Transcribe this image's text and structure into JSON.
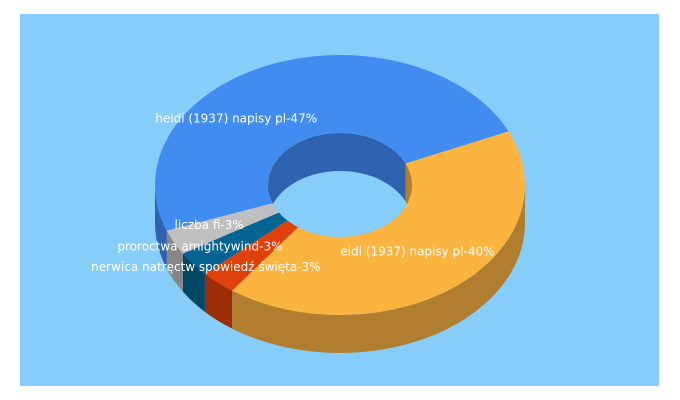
{
  "chart_data": {
    "type": "pie",
    "variant": "3d-donut",
    "title": "",
    "series": [
      {
        "name": "heidi (1937) napisy pl",
        "value": 47,
        "label": "heidi (1937) napisy pl-47%",
        "color": "#418cf0",
        "side_color": "#2f63b0"
      },
      {
        "name": "eidi (1937) napisy pl",
        "value": 40,
        "label": "eidi (1937) napisy pl-40%",
        "color": "#fcb441",
        "side_color": "#b07e2e"
      },
      {
        "name": "nerwica natręctw spowiedź święta",
        "value": 3,
        "label": "nerwica natręctw spowiedź święta-3%",
        "color": "#e0400a",
        "side_color": "#9d2d07"
      },
      {
        "name": "proroctwa amightywind",
        "value": 3,
        "label": "proroctwa amightywind-3%",
        "color": "#056492",
        "side_color": "#034766"
      },
      {
        "name": "liczba fi",
        "value": 3,
        "label": "liczba fi-3%",
        "color": "#bfbfbf",
        "side_color": "#868686"
      }
    ],
    "background_color": "#87cdfa",
    "legend": "none"
  }
}
